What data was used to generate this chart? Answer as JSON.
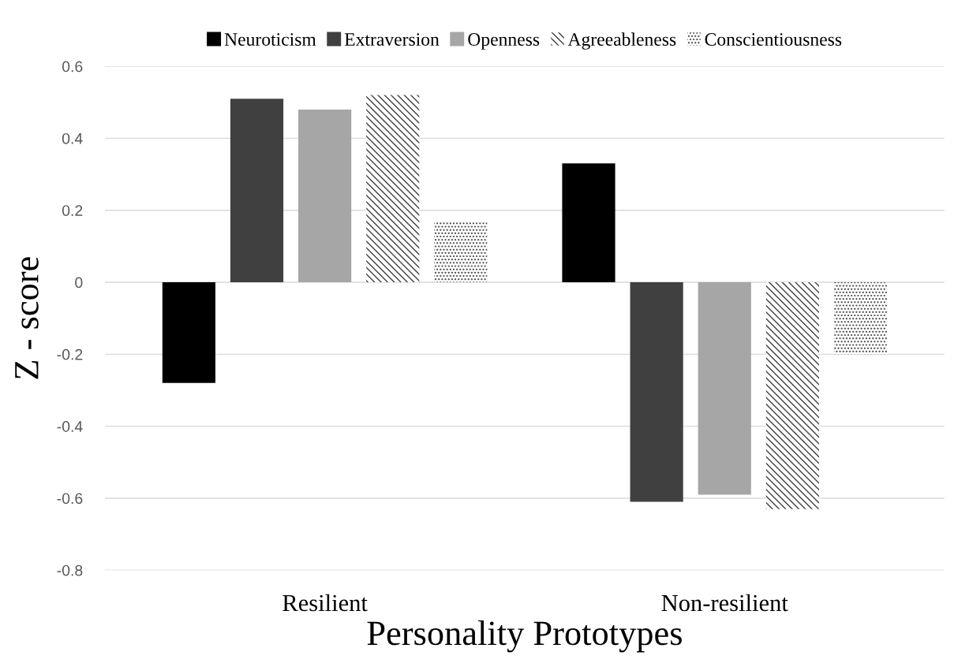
{
  "chart_data": {
    "type": "bar",
    "xlabel": "Personality Prototypes",
    "ylabel": "Z - score",
    "categories": [
      "Resilient",
      "Non-resilient"
    ],
    "series": [
      {
        "name": "Neuroticism",
        "color": "#000000",
        "values": [
          -0.28,
          0.33
        ]
      },
      {
        "name": "Extraversion",
        "color": "#404040",
        "values": [
          0.51,
          -0.61
        ]
      },
      {
        "name": "Openness",
        "color": "#a6a6a6",
        "values": [
          0.48,
          -0.59
        ]
      },
      {
        "name": "Agreeableness",
        "color": "#404040",
        "values": [
          0.52,
          -0.63
        ]
      },
      {
        "name": "Conscientiousness",
        "color": "#404040",
        "values": [
          0.17,
          -0.2
        ]
      }
    ],
    "ylim": [
      -0.8,
      0.6
    ],
    "yticks": [
      -0.8,
      -0.6,
      -0.4,
      -0.2,
      0,
      0.2,
      0.4,
      0.6
    ],
    "grid": "y",
    "legend": "top"
  }
}
